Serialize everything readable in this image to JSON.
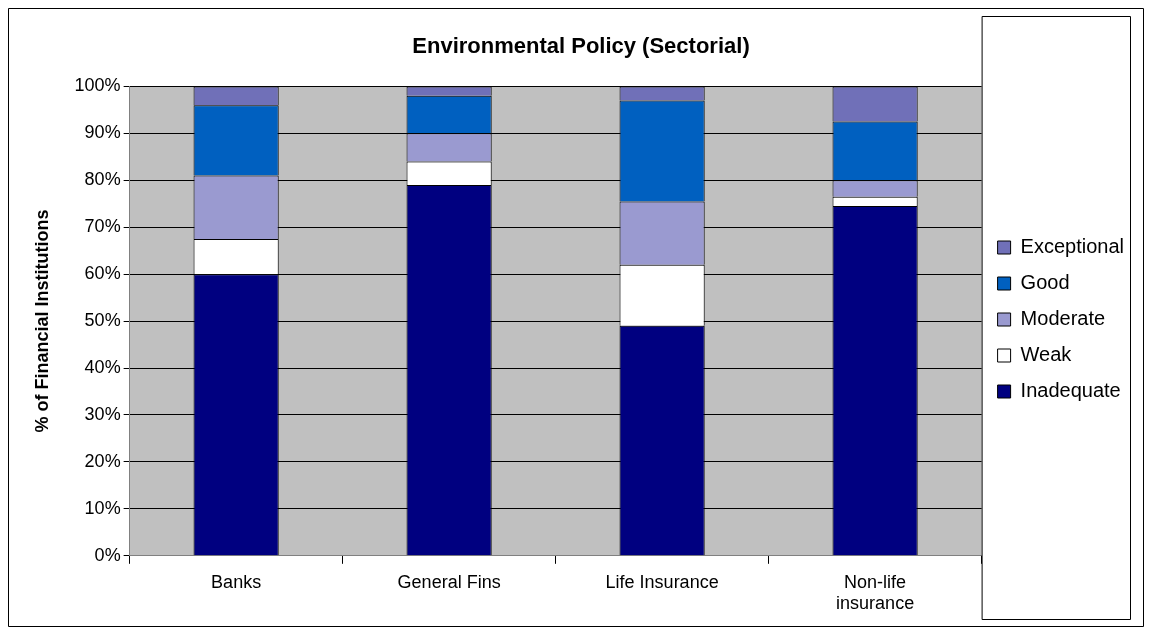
{
  "chart_data": {
    "type": "bar",
    "title": "Environmental Policy (Sectorial)",
    "ylabel": "% of Financial Institutions",
    "categories": [
      "Banks",
      "General Fins",
      "Life Insurance",
      "Non-life insurance"
    ],
    "stacked": true,
    "series": [
      {
        "name": "Inadequate",
        "color": "#000080",
        "values": [
          60,
          79,
          49,
          74.5
        ]
      },
      {
        "name": "Weak",
        "color": "#ffffff",
        "values": [
          7.5,
          5,
          13,
          2
        ]
      },
      {
        "name": "Moderate",
        "color": "#9a9ad0",
        "values": [
          13.5,
          6,
          13.5,
          3.5
        ]
      },
      {
        "name": "Good",
        "color": "#0060c0",
        "values": [
          15,
          8,
          21.5,
          12.5
        ]
      },
      {
        "name": "Exceptional",
        "color": "#7070b8",
        "values": [
          4,
          2,
          3,
          7.5
        ]
      }
    ],
    "ylim": [
      0,
      100
    ],
    "yticks": [
      {
        "value": 0,
        "label": "0%"
      },
      {
        "value": 10,
        "label": "10%"
      },
      {
        "value": 20,
        "label": "20%"
      },
      {
        "value": 30,
        "label": "30%"
      },
      {
        "value": 40,
        "label": "40%"
      },
      {
        "value": 50,
        "label": "50%"
      },
      {
        "value": 60,
        "label": "60%"
      },
      {
        "value": 70,
        "label": "70%"
      },
      {
        "value": 80,
        "label": "80%"
      },
      {
        "value": 90,
        "label": "90%"
      },
      {
        "value": 100,
        "label": "100%"
      }
    ],
    "grid": "y",
    "legend": "right"
  }
}
